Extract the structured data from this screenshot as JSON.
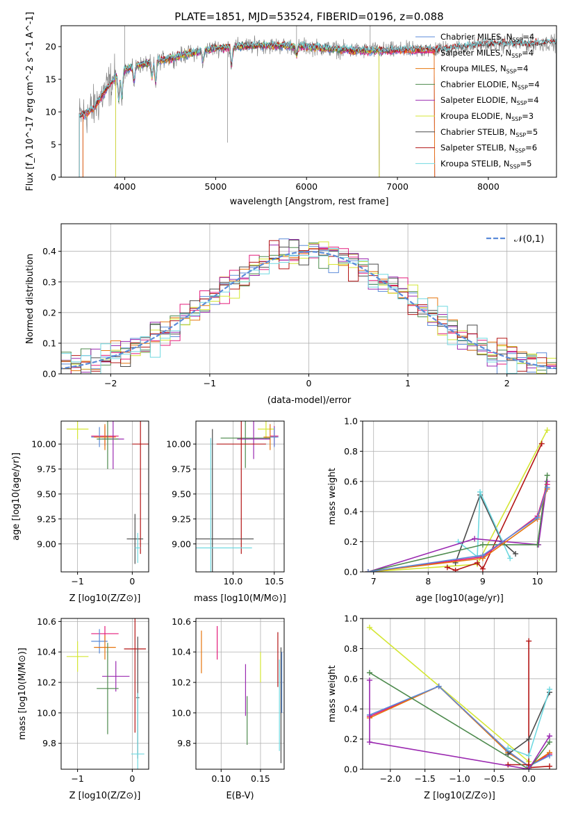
{
  "title": "PLATE=1851, MJD=53524, FIBERID=0196, z=0.088",
  "colors": {
    "chabrier_miles": "#5b8bd9",
    "salpeter_miles": "#e41a7a",
    "kroupa_miles": "#e6740c",
    "chabrier_elodie": "#4d8a4d",
    "salpeter_elodie": "#9a28b0",
    "kroupa_elodie": "#d4e634",
    "chabrier_stelib": "#4a4a4a",
    "salpeter_stelib": "#b31414",
    "kroupa_stelib": "#6fd8e0",
    "data": "#808080",
    "gaussian": "#5b8bd9"
  },
  "chart_data": [
    {
      "panel": "spectrum",
      "type": "line",
      "xlabel": "wavelength [Angstrom, rest frame]",
      "ylabel": "Flux [f_λ 10^-17 erg cm^-2 s^-1 A^-1]",
      "xlim": [
        3300,
        8750
      ],
      "ylim": [
        0,
        23.2
      ],
      "xticks": [
        "4000",
        "5000",
        "6000",
        "7000",
        "8000"
      ],
      "yticks": [
        "0",
        "5",
        "10",
        "15",
        "20"
      ],
      "legend_position": "right",
      "legend": [
        {
          "name": "Chabrier MILES, N",
          "sub": "SSP",
          "val": "=4",
          "color_key": "chabrier_miles"
        },
        {
          "name": "Salpeter MILES, N",
          "sub": "SSP",
          "val": "=4",
          "color_key": "salpeter_miles"
        },
        {
          "name": "Kroupa MILES, N",
          "sub": "SSP",
          "val": "=4",
          "color_key": "kroupa_miles"
        },
        {
          "name": "Chabrier ELODIE, N",
          "sub": "SSP",
          "val": "=4",
          "color_key": "chabrier_elodie"
        },
        {
          "name": "Salpeter ELODIE, N",
          "sub": "SSP",
          "val": "=4",
          "color_key": "salpeter_elodie"
        },
        {
          "name": "Kroupa ELODIE, N",
          "sub": "SSP",
          "val": "=3",
          "color_key": "kroupa_elodie"
        },
        {
          "name": "Chabrier STELIB, N",
          "sub": "SSP",
          "val": "=5",
          "color_key": "chabrier_stelib"
        },
        {
          "name": "Salpeter STELIB, N",
          "sub": "SSP",
          "val": "=6",
          "color_key": "salpeter_stelib"
        },
        {
          "name": "Kroupa STELIB, N",
          "sub": "SSP",
          "val": "=5",
          "color_key": "kroupa_stelib"
        }
      ],
      "continuum": [
        [
          3500,
          9.2
        ],
        [
          3650,
          10.4
        ],
        [
          3750,
          12.5
        ],
        [
          3900,
          15.5
        ],
        [
          4000,
          16.5
        ],
        [
          4200,
          17.3
        ],
        [
          4500,
          18.2
        ],
        [
          4800,
          19.2
        ],
        [
          5000,
          19.8
        ],
        [
          5500,
          20.2
        ],
        [
          6000,
          20.0
        ],
        [
          6500,
          19.4
        ],
        [
          7000,
          19.4
        ],
        [
          7500,
          19.6
        ],
        [
          8000,
          20.4
        ],
        [
          8500,
          20.4
        ],
        [
          8750,
          20.6
        ]
      ],
      "absorption_dips": [
        [
          3934,
          4.5
        ],
        [
          3968,
          4.5
        ],
        [
          4102,
          2.5
        ],
        [
          4300,
          2.5
        ],
        [
          4340,
          3.5
        ],
        [
          4861,
          2.0
        ],
        [
          5175,
          3.0
        ],
        [
          5890,
          1.5
        ]
      ]
    },
    {
      "panel": "residuals",
      "type": "area",
      "xlabel": "(data-model)/error",
      "ylabel": "Normed distribution",
      "xlim": [
        -2.5,
        2.5
      ],
      "ylim": [
        0,
        0.49
      ],
      "xticks": [
        "−2",
        "−1",
        "0",
        "1",
        "2"
      ],
      "yticks": [
        "0.0",
        "0.1",
        "0.2",
        "0.3",
        "0.4"
      ],
      "legend_position": "top-right",
      "legend": "𝒩(0,1)",
      "bin_width": 0.1,
      "gaussian": {
        "mean": 0,
        "sigma": 1
      }
    },
    {
      "panel": "age_vs_Z",
      "type": "scatter",
      "xlabel": "Z [log10(Z/Z⊙)]",
      "ylabel": "age [log10(age/yr)]",
      "xlim": [
        -1.3,
        0.3
      ],
      "ylim": [
        8.72,
        10.23
      ],
      "xticks": [
        "−1",
        "0"
      ],
      "yticks": [
        "9.00",
        "9.25",
        "9.50",
        "9.75",
        "10.00"
      ],
      "points": [
        {
          "key": "kroupa_elodie",
          "x": -1.0,
          "y": 10.15,
          "xerr": 0.2,
          "yerr": 0.1
        },
        {
          "key": "salpeter_miles",
          "x": -0.5,
          "y": 10.08,
          "xerr": 0.25,
          "yerr": 0.1
        },
        {
          "key": "chabrier_miles",
          "x": -0.6,
          "y": 10.07,
          "xerr": 0.15,
          "yerr": 0.1
        },
        {
          "key": "kroupa_miles",
          "x": -0.5,
          "y": 10.07,
          "xerr": 0.2,
          "yerr": 0.13
        },
        {
          "key": "salpeter_elodie",
          "x": -0.35,
          "y": 10.05,
          "xerr": 0.2,
          "yerr": 0.3
        },
        {
          "key": "chabrier_elodie",
          "x": -0.45,
          "y": 10.05,
          "xerr": 0.2,
          "yerr": 0.3
        },
        {
          "key": "salpeter_stelib",
          "x": 0.15,
          "y": 10.0,
          "xerr": 0.15,
          "yerr": 1.1
        },
        {
          "key": "chabrier_stelib",
          "x": 0.05,
          "y": 9.05,
          "xerr": 0.15,
          "yerr": 0.25
        },
        {
          "key": "kroupa_stelib",
          "x": 0.1,
          "y": 8.96,
          "xerr": 0.05,
          "yerr": 0.15
        }
      ]
    },
    {
      "panel": "age_vs_mass",
      "type": "scatter",
      "xlabel": "mass [log10(M/M⊙)]",
      "ylabel": "",
      "xlim": [
        9.55,
        10.62
      ],
      "ylim": [
        8.72,
        10.23
      ],
      "xticks": [
        "10.0",
        "10.5"
      ],
      "yticks": [
        "9.00",
        "9.25",
        "9.50",
        "9.75",
        "10.00"
      ],
      "points": [
        {
          "key": "kroupa_elodie",
          "x": 10.4,
          "y": 10.15,
          "xerr": 0.1,
          "yerr": 0.1
        },
        {
          "key": "salpeter_miles",
          "x": 10.5,
          "y": 10.08,
          "xerr": 0.05,
          "yerr": 0.1
        },
        {
          "key": "kroupa_miles",
          "x": 10.45,
          "y": 10.07,
          "xerr": 0.08,
          "yerr": 0.13
        },
        {
          "key": "chabrier_miles",
          "x": 10.5,
          "y": 10.07,
          "xerr": 0.05,
          "yerr": 0.1
        },
        {
          "key": "chabrier_elodie",
          "x": 10.15,
          "y": 10.06,
          "xerr": 0.3,
          "yerr": 0.3
        },
        {
          "key": "salpeter_elodie",
          "x": 10.25,
          "y": 10.05,
          "xerr": 0.2,
          "yerr": 0.2
        },
        {
          "key": "salpeter_stelib",
          "x": 10.1,
          "y": 10.0,
          "xerr": 0.3,
          "yerr": 1.1
        },
        {
          "key": "chabrier_stelib",
          "x": 9.75,
          "y": 9.05,
          "xerr": 0.5,
          "yerr": 1.1
        },
        {
          "key": "kroupa_stelib",
          "x": 9.73,
          "y": 8.96,
          "xerr": 0.5,
          "yerr": 1.1
        }
      ]
    },
    {
      "panel": "weight_vs_age",
      "type": "line",
      "xlabel": "age [log10(age/yr)]",
      "ylabel": "mass weight",
      "xlim": [
        6.8,
        10.35
      ],
      "ylim": [
        0,
        1.0
      ],
      "xticks": [
        "7",
        "8",
        "9",
        "10"
      ],
      "yticks": [
        "0.0",
        "0.2",
        "0.4",
        "0.6",
        "0.8",
        "1.0"
      ],
      "series": [
        {
          "key": "kroupa_elodie",
          "x": [
            6.9,
            8.9,
            10.18
          ],
          "y": [
            0.0,
            0.05,
            0.94
          ]
        },
        {
          "key": "salpeter_stelib",
          "x": [
            8.35,
            8.5,
            8.9,
            9.0,
            10.08
          ],
          "y": [
            0.03,
            0.01,
            0.06,
            0.02,
            0.85
          ]
        },
        {
          "key": "chabrier_stelib",
          "x": [
            8.5,
            8.95,
            9.35,
            9.6
          ],
          "y": [
            0.06,
            0.51,
            0.2,
            0.12
          ]
        },
        {
          "key": "kroupa_stelib",
          "x": [
            8.55,
            8.9,
            8.95,
            9.5
          ],
          "y": [
            0.2,
            0.1,
            0.53,
            0.09
          ]
        },
        {
          "key": "salpeter_elodie",
          "x": [
            6.9,
            8.85,
            10.02,
            10.18
          ],
          "y": [
            0.0,
            0.22,
            0.18,
            0.6
          ]
        },
        {
          "key": "chabrier_elodie",
          "x": [
            6.9,
            9.0,
            10.0,
            10.18
          ],
          "y": [
            0.0,
            0.18,
            0.18,
            0.64
          ]
        },
        {
          "key": "salpeter_miles",
          "x": [
            6.9,
            9.0,
            10.0,
            10.18
          ],
          "y": [
            0.0,
            0.1,
            0.37,
            0.58
          ]
        },
        {
          "key": "kroupa_miles",
          "x": [
            6.9,
            9.0,
            10.0,
            10.18
          ],
          "y": [
            0.0,
            0.09,
            0.35,
            0.55
          ]
        },
        {
          "key": "chabrier_miles",
          "x": [
            6.9,
            9.0,
            10.0,
            10.18
          ],
          "y": [
            0.0,
            0.11,
            0.36,
            0.56
          ]
        }
      ]
    },
    {
      "panel": "mass_vs_Z",
      "type": "scatter",
      "xlabel": "Z [log10(Z/Z⊙)]",
      "ylabel": "mass [log10(M/M⊙)]",
      "xlim": [
        -1.3,
        0.3
      ],
      "ylim": [
        9.63,
        10.62
      ],
      "xticks": [
        "−1",
        "0"
      ],
      "yticks": [
        "9.8",
        "10.0",
        "10.2",
        "10.4",
        "10.6"
      ],
      "points": [
        {
          "key": "kroupa_elodie",
          "x": -1.0,
          "y": 10.37,
          "xerr": 0.2,
          "yerr": 0.1
        },
        {
          "key": "salpeter_miles",
          "x": -0.5,
          "y": 10.52,
          "xerr": 0.25,
          "yerr": 0.05
        },
        {
          "key": "chabrier_miles",
          "x": -0.6,
          "y": 10.47,
          "xerr": 0.15,
          "yerr": 0.08
        },
        {
          "key": "kroupa_miles",
          "x": -0.5,
          "y": 10.43,
          "xerr": 0.2,
          "yerr": 0.08
        },
        {
          "key": "salpeter_elodie",
          "x": -0.3,
          "y": 10.24,
          "xerr": 0.25,
          "yerr": 0.1
        },
        {
          "key": "chabrier_elodie",
          "x": -0.45,
          "y": 10.16,
          "xerr": 0.2,
          "yerr": 0.3
        },
        {
          "key": "salpeter_stelib",
          "x": 0.05,
          "y": 10.42,
          "xerr": 0.2,
          "yerr": 0.55
        },
        {
          "key": "chabrier_stelib",
          "x": 0.1,
          "y": 10.1,
          "xerr": 0.03,
          "yerr": 0.4
        },
        {
          "key": "kroupa_stelib",
          "x": 0.1,
          "y": 9.73,
          "xerr": 0.12,
          "yerr": 0.4
        }
      ]
    },
    {
      "panel": "mass_vs_EBV",
      "type": "scatter",
      "xlabel": "E(B-V)",
      "ylabel": "",
      "xlim": [
        0.068,
        0.18
      ],
      "ylim": [
        9.63,
        10.62
      ],
      "xticks": [
        "0.10",
        "0.15"
      ],
      "yticks": [
        "9.8",
        "10.0",
        "10.2",
        "10.4",
        "10.6"
      ],
      "points": [
        {
          "key": "kroupa_miles",
          "x": 0.075,
          "y": 10.4,
          "xerr": 0,
          "yerr": 0.14
        },
        {
          "key": "salpeter_miles",
          "x": 0.095,
          "y": 10.46,
          "xerr": 0,
          "yerr": 0.11
        },
        {
          "key": "salpeter_elodie",
          "x": 0.131,
          "y": 10.15,
          "xerr": 0,
          "yerr": 0.17
        },
        {
          "key": "chabrier_elodie",
          "x": 0.133,
          "y": 9.95,
          "xerr": 0,
          "yerr": 0.16
        },
        {
          "key": "kroupa_elodie",
          "x": 0.15,
          "y": 10.3,
          "xerr": 0,
          "yerr": 0.1
        },
        {
          "key": "salpeter_stelib",
          "x": 0.172,
          "y": 10.35,
          "xerr": 0,
          "yerr": 0.18
        },
        {
          "key": "chabrier_stelib",
          "x": 0.176,
          "y": 10.05,
          "xerr": 0,
          "yerr": 0.38
        },
        {
          "key": "kroupa_stelib",
          "x": 0.174,
          "y": 10.05,
          "xerr": 0,
          "yerr": 0.3
        },
        {
          "key": "chabrier_miles",
          "x": 0.177,
          "y": 10.2,
          "xerr": 0,
          "yerr": 0.2
        }
      ]
    },
    {
      "panel": "weight_vs_Z",
      "type": "line",
      "xlabel": "Z [log10(Z/Z⊙)]",
      "ylabel": "mass weight",
      "xlim": [
        -2.4,
        0.4
      ],
      "ylim": [
        0,
        1.0
      ],
      "xticks": [
        "−2.0",
        "−1.5",
        "−1.0",
        "−0.5",
        "0.0"
      ],
      "yticks": [
        "0.0",
        "0.2",
        "0.4",
        "0.6",
        "0.8",
        "1.0"
      ],
      "series": [
        {
          "key": "kroupa_elodie",
          "x": [
            -2.3,
            0.0
          ],
          "y": [
            0.94,
            0.05
          ]
        },
        {
          "key": "salpeter_miles",
          "x": [
            -2.3,
            -1.3,
            -0.3,
            0.0,
            0.3
          ],
          "y": [
            0.35,
            0.55,
            0.12,
            0.02,
            0.1
          ]
        },
        {
          "key": "kroupa_miles",
          "x": [
            -2.3,
            -1.3,
            -0.3,
            0.0,
            0.3
          ],
          "y": [
            0.34,
            0.55,
            0.11,
            0.02,
            0.11
          ]
        },
        {
          "key": "chabrier_miles",
          "x": [
            -2.3,
            -1.3,
            -0.3,
            0.0,
            0.3
          ],
          "y": [
            0.36,
            0.55,
            0.12,
            0.02,
            0.09
          ]
        },
        {
          "key": "salpeter_stelib",
          "x": [
            -0.3,
            0.0,
            0.0,
            0.0,
            0.3
          ],
          "y": [
            0.03,
            0.03,
            0.85,
            0.01,
            0.02
          ]
        },
        {
          "key": "chabrier_stelib",
          "x": [
            -0.3,
            0.0,
            0.3
          ],
          "y": [
            0.1,
            0.2,
            0.51
          ]
        },
        {
          "key": "kroupa_stelib",
          "x": [
            -0.3,
            0.0,
            0.3
          ],
          "y": [
            0.14,
            0.09,
            0.53
          ]
        },
        {
          "key": "chabrier_elodie",
          "x": [
            -2.3,
            0.0,
            0.3
          ],
          "y": [
            0.64,
            0.0,
            0.18
          ]
        },
        {
          "key": "salpeter_elodie",
          "x": [
            -2.3,
            -2.3,
            0.0,
            0.3
          ],
          "y": [
            0.59,
            0.18,
            0.0,
            0.22
          ]
        }
      ]
    }
  ]
}
